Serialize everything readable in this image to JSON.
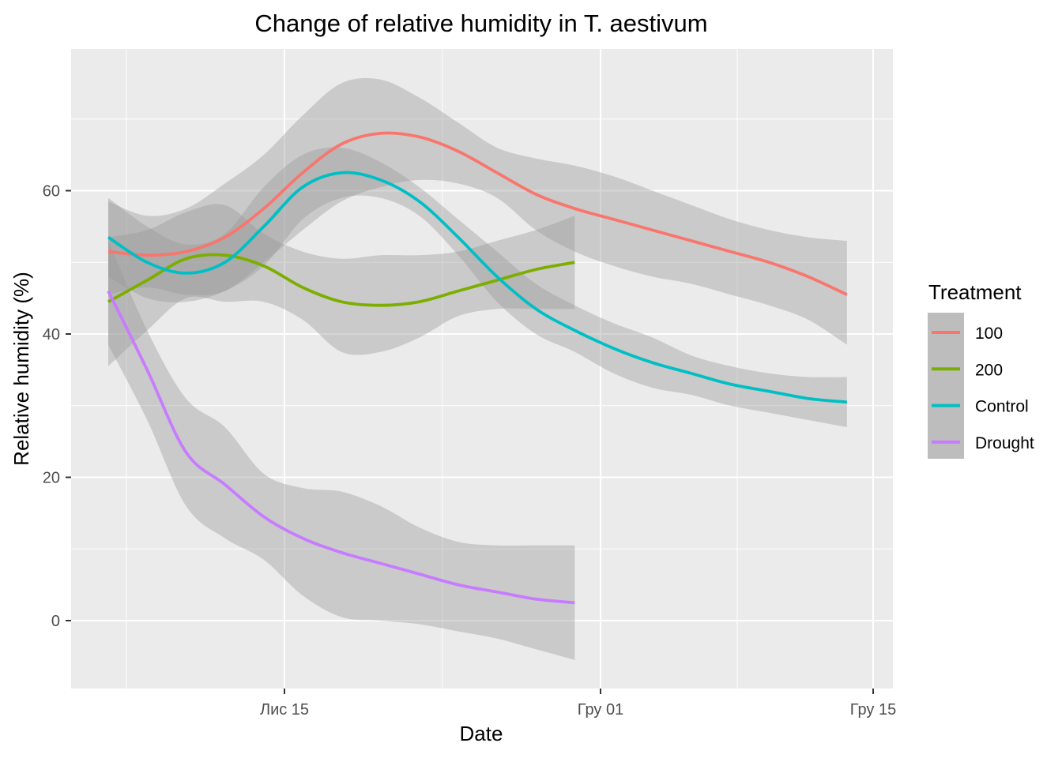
{
  "chart_data": {
    "type": "line",
    "title": "Change of relative humidity in T. aestivum",
    "xlabel": "Date",
    "ylabel": "Relative humidity (%)",
    "x_ticks": [
      "Лис 15",
      "Гру 01",
      "Гру 15"
    ],
    "y_ticks": [
      0,
      20,
      40,
      60
    ],
    "legend": {
      "title": "Treatment",
      "position": "right"
    },
    "grid": true,
    "series": [
      {
        "name": "100",
        "color": "#F8766D",
        "x": [
          0,
          2,
          4,
          6,
          8,
          10,
          12,
          14,
          16,
          18,
          20,
          22,
          24,
          26,
          28,
          30,
          32,
          34,
          36,
          38
        ],
        "y": [
          51.5,
          51.0,
          51.5,
          53.5,
          57.5,
          62.5,
          66.5,
          68.0,
          67.5,
          65.5,
          62.5,
          59.5,
          57.5,
          56.0,
          54.5,
          53.0,
          51.5,
          50.0,
          48.0,
          45.5
        ],
        "upper": [
          58.5,
          56.5,
          57.5,
          61.0,
          65.0,
          70.5,
          75.0,
          75.5,
          73.0,
          69.5,
          66.0,
          64.5,
          63.5,
          62.0,
          60.0,
          58.0,
          56.0,
          54.5,
          53.5,
          53.0
        ],
        "lower": [
          45.5,
          46.5,
          45.5,
          46.0,
          50.0,
          54.5,
          58.5,
          60.5,
          61.5,
          61.0,
          59.0,
          54.5,
          51.5,
          49.5,
          48.0,
          47.0,
          45.5,
          44.0,
          42.0,
          38.5
        ]
      },
      {
        "name": "200",
        "color": "#7CAE00",
        "x": [
          0,
          2,
          4,
          6,
          8,
          10,
          12,
          14,
          16,
          18,
          20,
          22,
          24
        ],
        "y": [
          44.5,
          47.5,
          50.5,
          51.0,
          49.5,
          46.5,
          44.5,
          44.0,
          44.5,
          46.0,
          47.5,
          49.0,
          50.0
        ],
        "upper": [
          53.5,
          54.5,
          57.0,
          58.0,
          54.0,
          51.5,
          50.5,
          51.0,
          51.0,
          51.5,
          53.0,
          54.5,
          56.5
        ],
        "lower": [
          35.5,
          40.5,
          45.0,
          44.5,
          44.5,
          42.0,
          37.5,
          37.5,
          39.5,
          42.5,
          43.5,
          43.5,
          43.5
        ]
      },
      {
        "name": "Control",
        "color": "#00BFC4",
        "x": [
          0,
          2,
          4,
          6,
          8,
          10,
          12,
          14,
          16,
          18,
          20,
          22,
          24,
          26,
          28,
          30,
          32,
          34,
          36,
          38
        ],
        "y": [
          53.5,
          50.0,
          48.5,
          50.0,
          55.0,
          60.5,
          62.5,
          61.5,
          58.5,
          53.5,
          48.0,
          43.5,
          40.5,
          38.0,
          36.0,
          34.5,
          33.0,
          32.0,
          31.0,
          30.5
        ],
        "upper": [
          59.0,
          55.0,
          52.5,
          54.0,
          60.5,
          65.0,
          66.0,
          64.0,
          60.5,
          56.0,
          51.5,
          47.0,
          44.0,
          41.5,
          39.5,
          37.0,
          35.5,
          34.5,
          34.0,
          34.0
        ],
        "lower": [
          48.0,
          45.0,
          44.5,
          46.0,
          49.5,
          56.0,
          59.0,
          59.0,
          56.5,
          51.0,
          44.5,
          40.0,
          37.5,
          34.5,
          32.5,
          31.5,
          30.0,
          29.0,
          28.0,
          27.0
        ]
      },
      {
        "name": "Drought",
        "color": "#C77CFF",
        "x": [
          0,
          2,
          4,
          6,
          8,
          10,
          12,
          14,
          16,
          18,
          20,
          22,
          24
        ],
        "y": [
          46.0,
          35.0,
          23.5,
          19.0,
          14.5,
          11.5,
          9.5,
          8.0,
          6.5,
          5.0,
          4.0,
          3.0,
          2.5
        ],
        "upper": [
          53.0,
          40.5,
          31.0,
          27.0,
          20.5,
          18.5,
          18.0,
          16.0,
          13.0,
          11.0,
          10.5,
          10.5,
          10.5
        ],
        "lower": [
          38.5,
          28.0,
          16.0,
          11.5,
          8.5,
          3.5,
          0.5,
          0.0,
          -0.5,
          -1.5,
          -2.5,
          -4.0,
          -5.5
        ]
      }
    ]
  }
}
